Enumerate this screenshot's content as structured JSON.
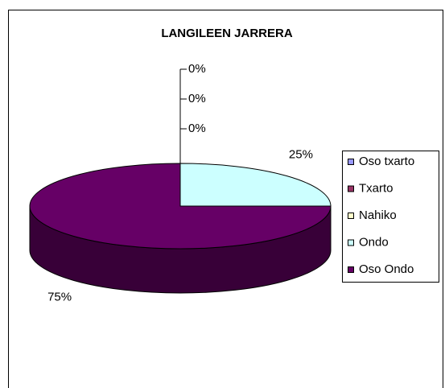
{
  "chart_data": {
    "type": "pie3d",
    "title": "LANGILEEN JARRERA",
    "categories": [
      "Oso txarto",
      "Txarto",
      "Nahiko",
      "Ondo",
      "Oso Ondo"
    ],
    "values": [
      0,
      0,
      0,
      25,
      75
    ],
    "value_labels": [
      "0%",
      "0%",
      "0%",
      "25%",
      "75%"
    ],
    "colors": [
      "#9999ff",
      "#993366",
      "#ffffcc",
      "#ccffff",
      "#660066"
    ],
    "legend": "right"
  }
}
